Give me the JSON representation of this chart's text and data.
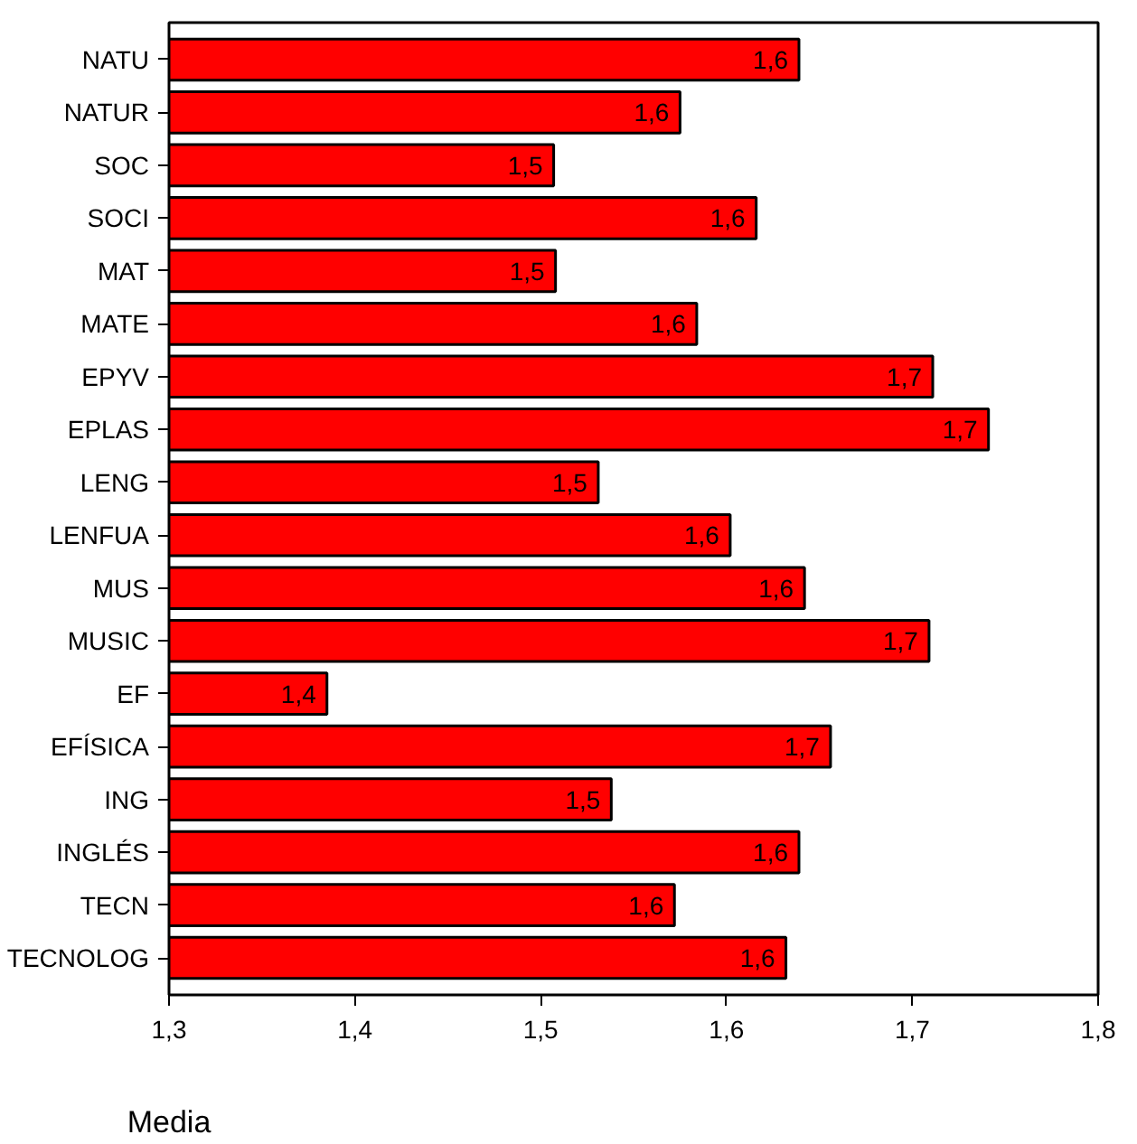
{
  "chart_data": {
    "type": "bar",
    "orientation": "horizontal",
    "xlabel": "Media",
    "categories": [
      "NATU",
      "NATUR",
      "SOC",
      "SOCI",
      "MAT",
      "MATE",
      "EPYV",
      "EPLAS",
      "LENG",
      "LENFUA",
      "MUS",
      "MUSIC",
      "EF",
      "EFÍSICA",
      "ING",
      "INGLÉS",
      "TECN",
      "TECNOLOG"
    ],
    "values": [
      1.639,
      1.575,
      1.507,
      1.616,
      1.508,
      1.584,
      1.711,
      1.741,
      1.531,
      1.602,
      1.642,
      1.709,
      1.385,
      1.656,
      1.538,
      1.639,
      1.572,
      1.632
    ],
    "value_labels": [
      "1,6",
      "1,6",
      "1,5",
      "1,6",
      "1,5",
      "1,6",
      "1,7",
      "1,7",
      "1,5",
      "1,6",
      "1,6",
      "1,7",
      "1,4",
      "1,7",
      "1,5",
      "1,6",
      "1,6",
      "1,6"
    ],
    "color": "#ff0000",
    "xlim": [
      1.3,
      1.8
    ],
    "xticks": [
      {
        "value": 1.3,
        "label": "1,3"
      },
      {
        "value": 1.4,
        "label": "1,4"
      },
      {
        "value": 1.5,
        "label": "1,5"
      },
      {
        "value": 1.6,
        "label": "1,6"
      },
      {
        "value": 1.7,
        "label": "1,7"
      },
      {
        "value": 1.8,
        "label": "1,8"
      }
    ],
    "grid": false
  }
}
